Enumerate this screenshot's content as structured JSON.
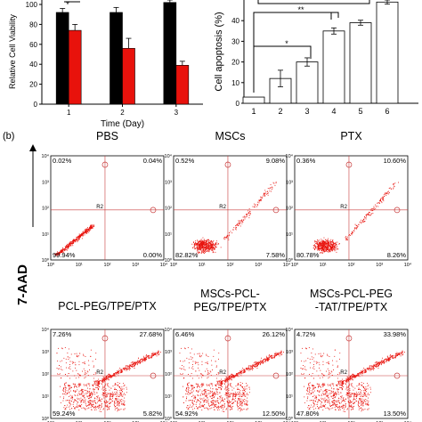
{
  "chart_data": [
    {
      "type": "bar",
      "ylabel": "Relative Cell Viability",
      "xlabel": "Time (Day)",
      "categories": [
        "1",
        "2",
        "3"
      ],
      "ylim": [
        0,
        100
      ],
      "yticks": [
        "0",
        "20",
        "40",
        "60",
        "80",
        "100"
      ],
      "significance": "*",
      "series": [
        {
          "values": [
            92,
            92,
            102
          ],
          "err": [
            4,
            5,
            3
          ],
          "color": "#000000"
        },
        {
          "values": [
            74,
            56,
            39
          ],
          "err": [
            6,
            10,
            4
          ],
          "color": "#e8120c"
        }
      ]
    },
    {
      "type": "bar",
      "ylabel": "Cell apoptosis (%)",
      "categories": [
        "1",
        "2",
        "3",
        "4",
        "5",
        "6"
      ],
      "ylim": [
        0,
        50
      ],
      "yticks": [
        "0",
        "10",
        "20",
        "30",
        "40"
      ],
      "values": [
        3,
        12,
        20,
        35,
        39,
        49
      ],
      "err": [
        0,
        4,
        2,
        1.5,
        1.2,
        1
      ],
      "significance": [
        "*",
        "**"
      ]
    }
  ],
  "panel_b": {
    "label": "(b)",
    "yaxis_label": "7-AAD",
    "gate_label": "R2",
    "tick_labels": [
      "10⁰",
      "10¹",
      "10²",
      "10³",
      "10⁴"
    ],
    "plots": [
      {
        "title": "PBS",
        "q": [
          "0.02%",
          "0.04%",
          "99.94%",
          "0.00%"
        ]
      },
      {
        "title": "MSCs",
        "q": [
          "0.52%",
          "9.08%",
          "82.82%",
          "7.58%"
        ]
      },
      {
        "title": "PTX",
        "q": [
          "0.36%",
          "10.60%",
          "80.78%",
          "8.26%"
        ]
      },
      {
        "title_lines": [
          "PCL-PEG/TPE/PTX"
        ],
        "q": [
          "7.26%",
          "27.68%",
          "59.24%",
          "5.82%"
        ]
      },
      {
        "title_lines": [
          "MSCs-PCL-",
          "PEG/TPE/PTX"
        ],
        "q": [
          "6.46%",
          "26.12%",
          "54.92%",
          "12.50%"
        ]
      },
      {
        "title_lines": [
          "MSCs-PCL-PEG",
          "-TAT/TPE/PTX"
        ],
        "q": [
          "4.72%",
          "33.98%",
          "47.80%",
          "13.50%"
        ]
      }
    ]
  },
  "colors": {
    "dots": "#e8120c",
    "bar_red": "#e8120c",
    "bar_black": "#000000"
  }
}
